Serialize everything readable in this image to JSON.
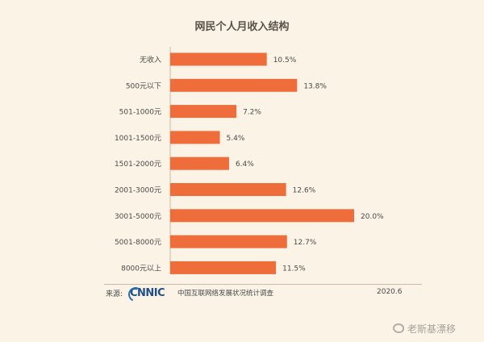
{
  "chart_data": {
    "type": "bar",
    "orientation": "horizontal",
    "title": "网民个人月收入结构",
    "categories": [
      "无收入",
      "500元以下",
      "501-1000元",
      "1001-1500元",
      "1501-2000元",
      "2001-3000元",
      "3001-5000元",
      "5001-8000元",
      "8000元以上"
    ],
    "values": [
      10.5,
      13.8,
      7.2,
      5.4,
      6.4,
      12.6,
      20.0,
      12.7,
      11.5
    ],
    "value_labels": [
      "10.5%",
      "13.8%",
      "7.2%",
      "5.4%",
      "6.4%",
      "12.6%",
      "20.0%",
      "12.7%",
      "11.5%"
    ],
    "unit": "%",
    "xlim": [
      0,
      20
    ],
    "grid": false,
    "bar_color": "#ee6d3a"
  },
  "footer": {
    "source_label": "来源:",
    "logo_text": "CNNIC",
    "source_text": "中国互联网络发展状况统计调查",
    "date": "2020.6"
  },
  "watermark": {
    "text": "老斯基漂移"
  },
  "colors": {
    "background": "#fbf3e6",
    "text": "#4a4a4a"
  }
}
